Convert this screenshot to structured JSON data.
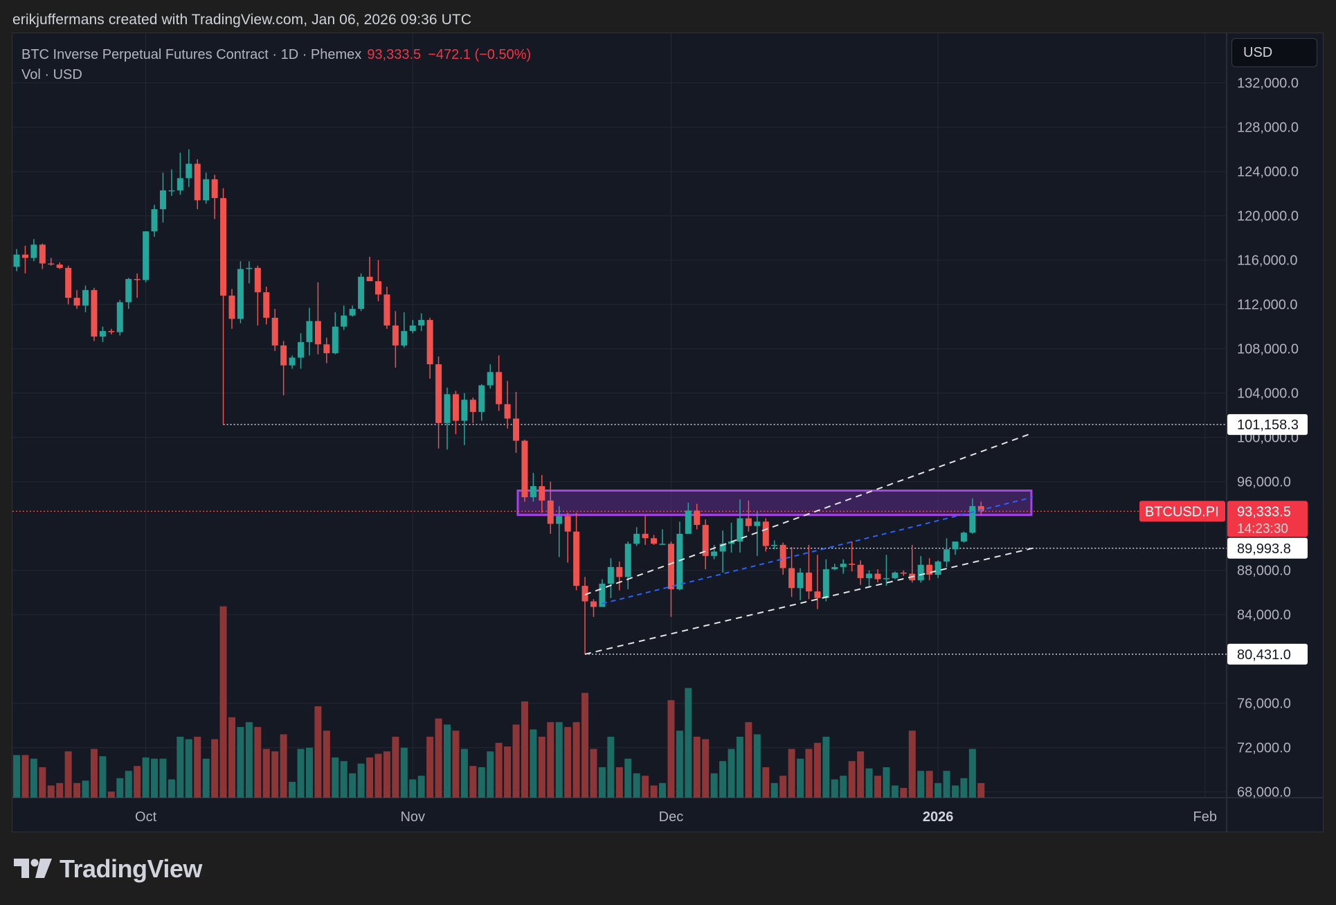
{
  "attribution": "erikjuffermans created with TradingView.com, Jan 06, 2026 09:36 UTC",
  "legend": {
    "symbol_line": "BTC Inverse Perpetual Futures Contract · 1D · Phemex",
    "price": "93,333.5",
    "change": "−472.1 (−0.50%)",
    "volume_line": "Vol · USD"
  },
  "currency_button": "USD",
  "brand": {
    "name": "TradingView",
    "logo_icon": "tradingview-logo-icon"
  },
  "colors": {
    "up": "#26a69a",
    "down": "#ef5350",
    "vol_up": "#1d6b64",
    "vol_down": "#8c3637",
    "zone_fill": "#5d2a88",
    "zone_border": "#a642e6",
    "background": "#151924"
  },
  "chart_data": {
    "type": "candlestick",
    "symbol": "BTCUSD.PI",
    "timeframe": "1D",
    "y_axis": {
      "min": 68000,
      "max": 132000,
      "ticks": [
        "132,000.0",
        "128,000.0",
        "124,000.0",
        "120,000.0",
        "116,000.0",
        "112,000.0",
        "108,000.0",
        "104,000.0",
        "100,000.0",
        "96,000.0",
        "88,000.0",
        "84,000.0",
        "76,000.0",
        "72,000.0",
        "68,000.0"
      ],
      "tick_values": [
        132000,
        128000,
        124000,
        120000,
        116000,
        112000,
        108000,
        104000,
        100000,
        96000,
        88000,
        84000,
        76000,
        72000,
        68000
      ]
    },
    "x_axis": {
      "labels": [
        "Oct",
        "Nov",
        "Dec",
        "2026",
        "Feb"
      ],
      "label_dates": [
        "2025-10-01",
        "2025-11-01",
        "2025-12-01",
        "2026-01-01",
        "2026-02-01"
      ],
      "bold_label": "2026",
      "start_date": "2025-09-16",
      "end_date": "2026-02-08"
    },
    "current_price": {
      "symbol_label": "BTCUSD.PI",
      "price": 93333.5,
      "price_label": "93,333.5",
      "countdown": "14:23:30"
    },
    "horizontal_levels": [
      {
        "price": 101158.3,
        "label": "101,158.3",
        "from": "2025-10-10"
      },
      {
        "price": 89993.8,
        "label": "89,993.8",
        "from": "2025-12-12"
      },
      {
        "price": 80431.0,
        "label": "80,431.0",
        "from": "2025-11-21"
      }
    ],
    "resistance_zone": {
      "from": "2025-11-14",
      "to": "2026-01-12",
      "price_low": 93000,
      "price_high": 95200
    },
    "channel_lines": [
      {
        "style": "dashed-white",
        "p1": [
          "2025-11-21",
          85800
        ],
        "p2": [
          "2026-01-12",
          100400
        ]
      },
      {
        "style": "dashed-white",
        "p1": [
          "2025-11-21",
          80431
        ],
        "p2": [
          "2026-01-12",
          90000
        ]
      },
      {
        "style": "dashed-blue",
        "p1": [
          "2025-11-23",
          85000
        ],
        "p2": [
          "2026-01-12",
          94600
        ]
      }
    ],
    "candles": [
      {
        "d": "2025-09-16",
        "o": 115400,
        "h": 117000,
        "l": 115000,
        "c": 116500,
        "v": 0.35
      },
      {
        "d": "2025-09-17",
        "o": 116500,
        "h": 117300,
        "l": 114800,
        "c": 116200,
        "v": 0.35
      },
      {
        "d": "2025-09-18",
        "o": 116200,
        "h": 117900,
        "l": 115900,
        "c": 117400,
        "v": 0.32
      },
      {
        "d": "2025-09-19",
        "o": 117400,
        "h": 117500,
        "l": 115200,
        "c": 115700,
        "v": 0.25
      },
      {
        "d": "2025-09-20",
        "o": 115700,
        "h": 116200,
        "l": 115500,
        "c": 115600,
        "v": 0.1
      },
      {
        "d": "2025-09-21",
        "o": 115600,
        "h": 115800,
        "l": 115200,
        "c": 115300,
        "v": 0.12
      },
      {
        "d": "2025-09-22",
        "o": 115300,
        "h": 115500,
        "l": 112000,
        "c": 112600,
        "v": 0.38
      },
      {
        "d": "2025-09-23",
        "o": 112600,
        "h": 113300,
        "l": 111600,
        "c": 111900,
        "v": 0.12
      },
      {
        "d": "2025-09-24",
        "o": 111900,
        "h": 113700,
        "l": 111300,
        "c": 113300,
        "v": 0.14
      },
      {
        "d": "2025-09-25",
        "o": 113300,
        "h": 113500,
        "l": 108700,
        "c": 109100,
        "v": 0.4
      },
      {
        "d": "2025-09-26",
        "o": 109100,
        "h": 110000,
        "l": 108600,
        "c": 109600,
        "v": 0.34
      },
      {
        "d": "2025-09-27",
        "o": 109600,
        "h": 109800,
        "l": 109300,
        "c": 109500,
        "v": 0.05
      },
      {
        "d": "2025-09-28",
        "o": 109500,
        "h": 112400,
        "l": 109200,
        "c": 112200,
        "v": 0.16
      },
      {
        "d": "2025-09-29",
        "o": 112200,
        "h": 114400,
        "l": 111600,
        "c": 114300,
        "v": 0.22
      },
      {
        "d": "2025-09-30",
        "o": 114300,
        "h": 114800,
        "l": 112600,
        "c": 114200,
        "v": 0.26
      },
      {
        "d": "2025-10-01",
        "o": 114200,
        "h": 118600,
        "l": 114000,
        "c": 118600,
        "v": 0.33
      },
      {
        "d": "2025-10-02",
        "o": 118600,
        "h": 121000,
        "l": 118100,
        "c": 120600,
        "v": 0.32
      },
      {
        "d": "2025-10-03",
        "o": 120600,
        "h": 123900,
        "l": 119400,
        "c": 122300,
        "v": 0.32
      },
      {
        "d": "2025-10-04",
        "o": 122300,
        "h": 124200,
        "l": 121800,
        "c": 122300,
        "v": 0.15
      },
      {
        "d": "2025-10-05",
        "o": 122300,
        "h": 125700,
        "l": 121900,
        "c": 123400,
        "v": 0.5
      },
      {
        "d": "2025-10-06",
        "o": 123400,
        "h": 126000,
        "l": 122600,
        "c": 124700,
        "v": 0.48
      },
      {
        "d": "2025-10-07",
        "o": 124700,
        "h": 125100,
        "l": 120600,
        "c": 121400,
        "v": 0.5
      },
      {
        "d": "2025-10-08",
        "o": 121400,
        "h": 123900,
        "l": 121100,
        "c": 123300,
        "v": 0.32
      },
      {
        "d": "2025-10-09",
        "o": 123300,
        "h": 123700,
        "l": 119700,
        "c": 121600,
        "v": 0.48
      },
      {
        "d": "2025-10-10",
        "o": 121600,
        "h": 122500,
        "l": 101158,
        "c": 112800,
        "v": 1.57
      },
      {
        "d": "2025-10-11",
        "o": 112800,
        "h": 113400,
        "l": 109800,
        "c": 110700,
        "v": 0.66
      },
      {
        "d": "2025-10-12",
        "o": 110700,
        "h": 115900,
        "l": 110300,
        "c": 115200,
        "v": 0.58
      },
      {
        "d": "2025-10-13",
        "o": 115200,
        "h": 115900,
        "l": 113900,
        "c": 115300,
        "v": 0.62
      },
      {
        "d": "2025-10-14",
        "o": 115300,
        "h": 115500,
        "l": 110100,
        "c": 113100,
        "v": 0.58
      },
      {
        "d": "2025-10-15",
        "o": 113100,
        "h": 113600,
        "l": 110200,
        "c": 110800,
        "v": 0.4
      },
      {
        "d": "2025-10-16",
        "o": 110800,
        "h": 111600,
        "l": 107800,
        "c": 108300,
        "v": 0.38
      },
      {
        "d": "2025-10-17",
        "o": 108300,
        "h": 108700,
        "l": 103800,
        "c": 106500,
        "v": 0.52
      },
      {
        "d": "2025-10-18",
        "o": 106500,
        "h": 107400,
        "l": 106200,
        "c": 107200,
        "v": 0.13
      },
      {
        "d": "2025-10-19",
        "o": 107200,
        "h": 109400,
        "l": 106200,
        "c": 108600,
        "v": 0.4
      },
      {
        "d": "2025-10-20",
        "o": 108600,
        "h": 111700,
        "l": 107400,
        "c": 110500,
        "v": 0.41
      },
      {
        "d": "2025-10-21",
        "o": 110500,
        "h": 114000,
        "l": 107500,
        "c": 108400,
        "v": 0.75
      },
      {
        "d": "2025-10-22",
        "o": 108400,
        "h": 109000,
        "l": 106700,
        "c": 107600,
        "v": 0.55
      },
      {
        "d": "2025-10-23",
        "o": 107600,
        "h": 111300,
        "l": 107500,
        "c": 110000,
        "v": 0.33
      },
      {
        "d": "2025-10-24",
        "o": 110000,
        "h": 111900,
        "l": 109700,
        "c": 111000,
        "v": 0.3
      },
      {
        "d": "2025-10-25",
        "o": 111000,
        "h": 111900,
        "l": 110900,
        "c": 111600,
        "v": 0.2
      },
      {
        "d": "2025-10-26",
        "o": 111600,
        "h": 114800,
        "l": 111400,
        "c": 114500,
        "v": 0.28
      },
      {
        "d": "2025-10-27",
        "o": 114500,
        "h": 116300,
        "l": 114100,
        "c": 114100,
        "v": 0.33
      },
      {
        "d": "2025-10-28",
        "o": 114100,
        "h": 116000,
        "l": 112300,
        "c": 112900,
        "v": 0.36
      },
      {
        "d": "2025-10-29",
        "o": 112900,
        "h": 113600,
        "l": 109800,
        "c": 110100,
        "v": 0.38
      },
      {
        "d": "2025-10-30",
        "o": 110100,
        "h": 111400,
        "l": 106300,
        "c": 108300,
        "v": 0.5
      },
      {
        "d": "2025-10-31",
        "o": 108300,
        "h": 111300,
        "l": 108100,
        "c": 109600,
        "v": 0.41
      },
      {
        "d": "2025-11-01",
        "o": 109600,
        "h": 110600,
        "l": 109400,
        "c": 110100,
        "v": 0.15
      },
      {
        "d": "2025-11-02",
        "o": 110100,
        "h": 111200,
        "l": 109600,
        "c": 110600,
        "v": 0.18
      },
      {
        "d": "2025-11-03",
        "o": 110600,
        "h": 110800,
        "l": 105300,
        "c": 106600,
        "v": 0.5
      },
      {
        "d": "2025-11-04",
        "o": 106600,
        "h": 107300,
        "l": 99000,
        "c": 101300,
        "v": 0.65
      },
      {
        "d": "2025-11-05",
        "o": 101300,
        "h": 104500,
        "l": 98900,
        "c": 103900,
        "v": 0.6
      },
      {
        "d": "2025-11-06",
        "o": 103900,
        "h": 104200,
        "l": 100300,
        "c": 101500,
        "v": 0.55
      },
      {
        "d": "2025-11-07",
        "o": 101500,
        "h": 104000,
        "l": 99300,
        "c": 103400,
        "v": 0.4
      },
      {
        "d": "2025-11-08",
        "o": 103400,
        "h": 103600,
        "l": 101300,
        "c": 102300,
        "v": 0.26
      },
      {
        "d": "2025-11-09",
        "o": 102300,
        "h": 104800,
        "l": 101500,
        "c": 104700,
        "v": 0.25
      },
      {
        "d": "2025-11-10",
        "o": 104700,
        "h": 106600,
        "l": 104400,
        "c": 105900,
        "v": 0.38
      },
      {
        "d": "2025-11-11",
        "o": 105900,
        "h": 107400,
        "l": 102400,
        "c": 103000,
        "v": 0.45
      },
      {
        "d": "2025-11-12",
        "o": 103000,
        "h": 105100,
        "l": 100800,
        "c": 101700,
        "v": 0.42
      },
      {
        "d": "2025-11-13",
        "o": 101700,
        "h": 104100,
        "l": 98600,
        "c": 99700,
        "v": 0.6
      },
      {
        "d": "2025-11-14",
        "o": 99700,
        "h": 99800,
        "l": 94200,
        "c": 94600,
        "v": 0.79
      },
      {
        "d": "2025-11-15",
        "o": 94600,
        "h": 96800,
        "l": 94200,
        "c": 95600,
        "v": 0.56
      },
      {
        "d": "2025-11-16",
        "o": 95600,
        "h": 96600,
        "l": 93200,
        "c": 94300,
        "v": 0.5
      },
      {
        "d": "2025-11-17",
        "o": 94300,
        "h": 96000,
        "l": 91300,
        "c": 92200,
        "v": 0.62
      },
      {
        "d": "2025-11-18",
        "o": 92200,
        "h": 93800,
        "l": 89200,
        "c": 92900,
        "v": 0.62
      },
      {
        "d": "2025-11-19",
        "o": 92900,
        "h": 93200,
        "l": 88700,
        "c": 91500,
        "v": 0.58
      },
      {
        "d": "2025-11-20",
        "o": 91500,
        "h": 93200,
        "l": 86200,
        "c": 86600,
        "v": 0.62
      },
      {
        "d": "2025-11-21",
        "o": 86600,
        "h": 87400,
        "l": 80431,
        "c": 85200,
        "v": 0.86
      },
      {
        "d": "2025-11-22",
        "o": 85200,
        "h": 85400,
        "l": 83800,
        "c": 84700,
        "v": 0.4
      },
      {
        "d": "2025-11-23",
        "o": 84700,
        "h": 87200,
        "l": 84700,
        "c": 86800,
        "v": 0.25
      },
      {
        "d": "2025-11-24",
        "o": 86800,
        "h": 89100,
        "l": 85500,
        "c": 88300,
        "v": 0.5
      },
      {
        "d": "2025-11-25",
        "o": 88300,
        "h": 88800,
        "l": 86200,
        "c": 87400,
        "v": 0.25
      },
      {
        "d": "2025-11-26",
        "o": 87400,
        "h": 90600,
        "l": 86300,
        "c": 90400,
        "v": 0.32
      },
      {
        "d": "2025-11-27",
        "o": 90400,
        "h": 91900,
        "l": 90200,
        "c": 91300,
        "v": 0.2
      },
      {
        "d": "2025-11-28",
        "o": 91300,
        "h": 92900,
        "l": 90300,
        "c": 90900,
        "v": 0.18
      },
      {
        "d": "2025-11-29",
        "o": 90900,
        "h": 91200,
        "l": 90300,
        "c": 90400,
        "v": 0.1
      },
      {
        "d": "2025-11-30",
        "o": 90400,
        "h": 91700,
        "l": 90300,
        "c": 90400,
        "v": 0.12
      },
      {
        "d": "2025-12-01",
        "o": 90400,
        "h": 90600,
        "l": 83800,
        "c": 86300,
        "v": 0.8
      },
      {
        "d": "2025-12-02",
        "o": 86300,
        "h": 92400,
        "l": 86200,
        "c": 91300,
        "v": 0.55
      },
      {
        "d": "2025-12-03",
        "o": 91300,
        "h": 94100,
        "l": 91300,
        "c": 93400,
        "v": 0.9
      },
      {
        "d": "2025-12-04",
        "o": 93400,
        "h": 94000,
        "l": 91700,
        "c": 92100,
        "v": 0.5
      },
      {
        "d": "2025-12-05",
        "o": 92100,
        "h": 92600,
        "l": 88100,
        "c": 89300,
        "v": 0.48
      },
      {
        "d": "2025-12-06",
        "o": 89300,
        "h": 90300,
        "l": 89000,
        "c": 89700,
        "v": 0.2
      },
      {
        "d": "2025-12-07",
        "o": 89700,
        "h": 91600,
        "l": 87800,
        "c": 90400,
        "v": 0.3
      },
      {
        "d": "2025-12-08",
        "o": 90400,
        "h": 92300,
        "l": 89600,
        "c": 90600,
        "v": 0.4
      },
      {
        "d": "2025-12-09",
        "o": 90600,
        "h": 94400,
        "l": 89600,
        "c": 92700,
        "v": 0.5
      },
      {
        "d": "2025-12-10",
        "o": 92700,
        "h": 94300,
        "l": 91500,
        "c": 92000,
        "v": 0.62
      },
      {
        "d": "2025-12-11",
        "o": 92000,
        "h": 93300,
        "l": 89300,
        "c": 92400,
        "v": 0.52
      },
      {
        "d": "2025-12-12",
        "o": 92400,
        "h": 92700,
        "l": 89700,
        "c": 90200,
        "v": 0.25
      },
      {
        "d": "2025-12-13",
        "o": 90200,
        "h": 90700,
        "l": 89900,
        "c": 90300,
        "v": 0.12
      },
      {
        "d": "2025-12-14",
        "o": 90300,
        "h": 90500,
        "l": 87600,
        "c": 88200,
        "v": 0.18
      },
      {
        "d": "2025-12-15",
        "o": 88200,
        "h": 90100,
        "l": 85600,
        "c": 86400,
        "v": 0.4
      },
      {
        "d": "2025-12-16",
        "o": 86400,
        "h": 88200,
        "l": 85300,
        "c": 87800,
        "v": 0.32
      },
      {
        "d": "2025-12-17",
        "o": 87800,
        "h": 90300,
        "l": 85400,
        "c": 86100,
        "v": 0.4
      },
      {
        "d": "2025-12-18",
        "o": 86100,
        "h": 89400,
        "l": 84500,
        "c": 85500,
        "v": 0.45
      },
      {
        "d": "2025-12-19",
        "o": 85500,
        "h": 89000,
        "l": 85200,
        "c": 88100,
        "v": 0.5
      },
      {
        "d": "2025-12-20",
        "o": 88100,
        "h": 88600,
        "l": 88000,
        "c": 88300,
        "v": 0.15
      },
      {
        "d": "2025-12-21",
        "o": 88300,
        "h": 89000,
        "l": 87700,
        "c": 88600,
        "v": 0.18
      },
      {
        "d": "2025-12-22",
        "o": 88600,
        "h": 90600,
        "l": 87900,
        "c": 88500,
        "v": 0.3
      },
      {
        "d": "2025-12-23",
        "o": 88500,
        "h": 88900,
        "l": 86700,
        "c": 87300,
        "v": 0.38
      },
      {
        "d": "2025-12-24",
        "o": 87300,
        "h": 88000,
        "l": 86500,
        "c": 87700,
        "v": 0.24
      },
      {
        "d": "2025-12-25",
        "o": 87700,
        "h": 88100,
        "l": 86900,
        "c": 87200,
        "v": 0.18
      },
      {
        "d": "2025-12-26",
        "o": 87200,
        "h": 89400,
        "l": 86600,
        "c": 87300,
        "v": 0.25
      },
      {
        "d": "2025-12-27",
        "o": 87300,
        "h": 87900,
        "l": 87200,
        "c": 87800,
        "v": 0.1
      },
      {
        "d": "2025-12-28",
        "o": 87800,
        "h": 88000,
        "l": 87500,
        "c": 87700,
        "v": 0.08
      },
      {
        "d": "2025-12-29",
        "o": 87700,
        "h": 90300,
        "l": 86900,
        "c": 87100,
        "v": 0.55
      },
      {
        "d": "2025-12-30",
        "o": 87100,
        "h": 89300,
        "l": 86900,
        "c": 88500,
        "v": 0.22
      },
      {
        "d": "2025-12-31",
        "o": 88500,
        "h": 89100,
        "l": 87100,
        "c": 87600,
        "v": 0.22
      },
      {
        "d": "2026-01-01",
        "o": 87600,
        "h": 88900,
        "l": 87300,
        "c": 88800,
        "v": 0.12
      },
      {
        "d": "2026-01-02",
        "o": 88800,
        "h": 90900,
        "l": 88300,
        "c": 89900,
        "v": 0.22
      },
      {
        "d": "2026-01-03",
        "o": 89900,
        "h": 90600,
        "l": 89400,
        "c": 90600,
        "v": 0.1
      },
      {
        "d": "2026-01-04",
        "o": 90600,
        "h": 91500,
        "l": 90500,
        "c": 91400,
        "v": 0.16
      },
      {
        "d": "2026-01-05",
        "o": 91400,
        "h": 94500,
        "l": 91300,
        "c": 93800,
        "v": 0.4
      },
      {
        "d": "2026-01-06",
        "o": 93800,
        "h": 94200,
        "l": 93000,
        "c": 93333.5,
        "v": 0.12
      }
    ]
  }
}
